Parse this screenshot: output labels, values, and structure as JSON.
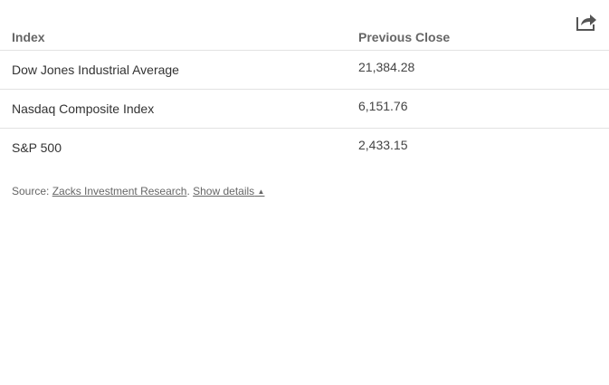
{
  "share": {
    "icon": "share-icon"
  },
  "table": {
    "headers": {
      "index": "Index",
      "previous_close": "Previous Close"
    },
    "rows": [
      {
        "index": "Dow Jones Industrial Average",
        "previous_close": "21,384.28"
      },
      {
        "index": "Nasdaq Composite Index",
        "previous_close": "6,151.76"
      },
      {
        "index": "S&P 500",
        "previous_close": "2,433.15"
      }
    ]
  },
  "footer": {
    "source_label": "Source:",
    "source_link": "Zacks Investment Research",
    "separator": ".",
    "details_link": "Show details",
    "details_caret": "▲"
  }
}
